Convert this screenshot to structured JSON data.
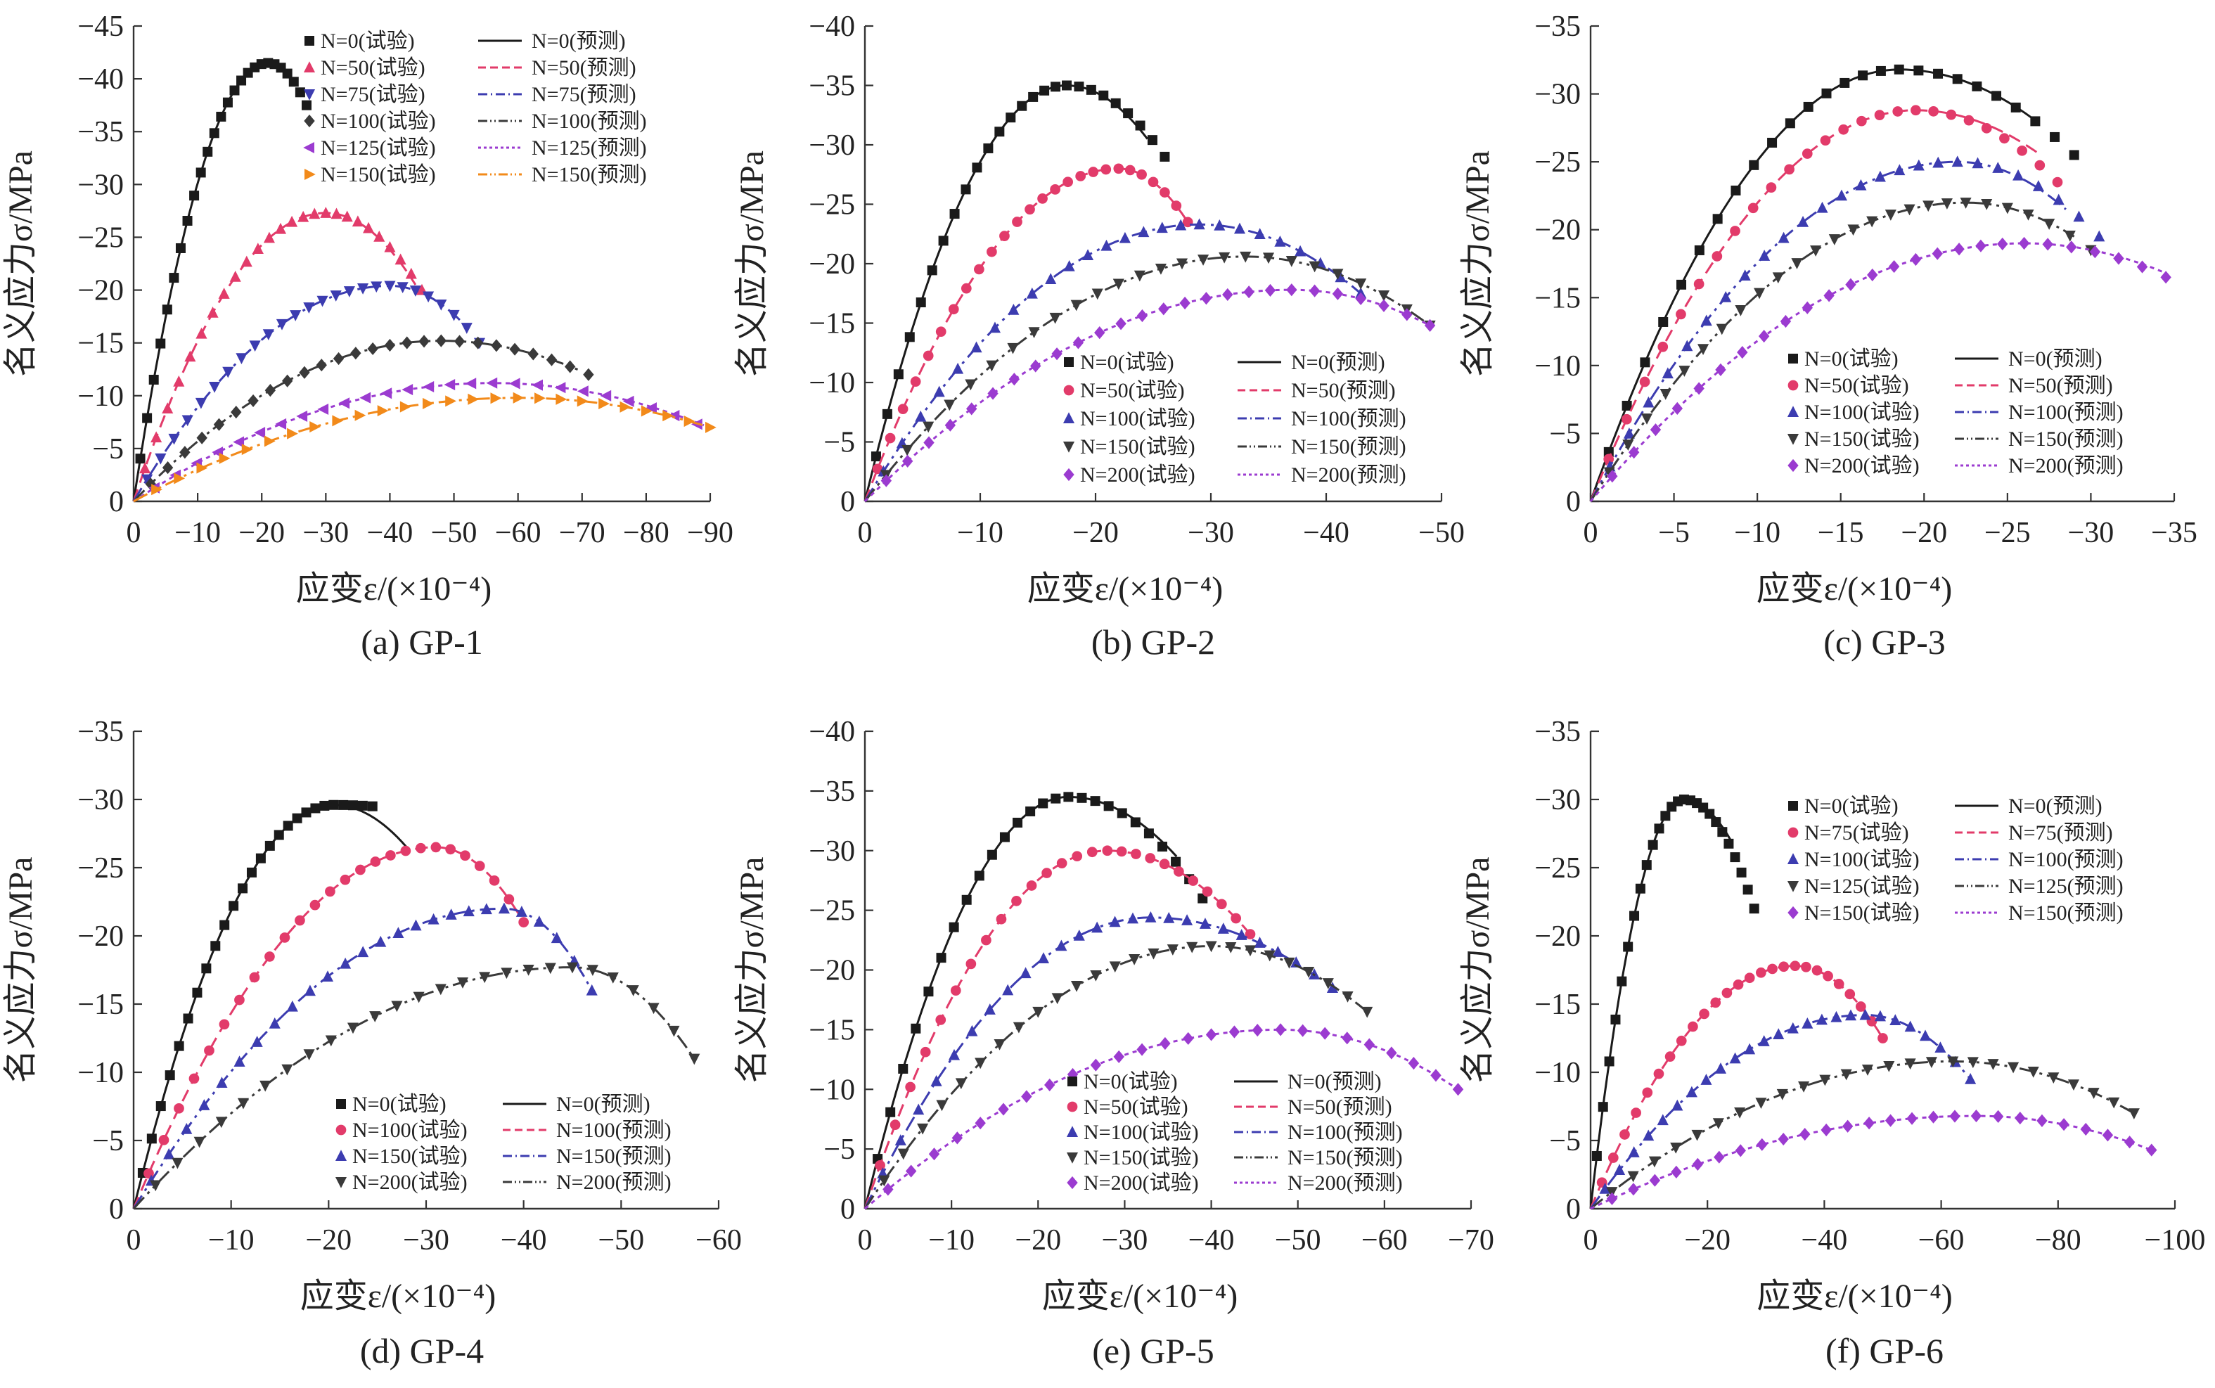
{
  "chart_data": [
    {
      "type": "scatter",
      "caption": "(a) GP-1",
      "xlabel": "应变ε/(×10⁻⁴)",
      "ylabel": "名义应力σ/MPa",
      "xlim": [
        0,
        -90
      ],
      "ylim": [
        0,
        -45
      ],
      "xticks": [
        0,
        -10,
        -20,
        -30,
        -40,
        -50,
        -60,
        -70,
        -80,
        -90
      ],
      "yticks": [
        0,
        -5,
        -10,
        -15,
        -20,
        -25,
        -30,
        -35,
        -40,
        -45
      ],
      "legend_position": "top-center",
      "legend_columns": 2,
      "legend": [
        "N=0(试验)",
        "N=0(预测)",
        "N=50(试验)",
        "N=50(预测)",
        "N=75(试验)",
        "N=75(预测)",
        "N=100(试验)",
        "N=100(预测)",
        "N=125(试验)",
        "N=125(预测)",
        "N=150(试验)",
        "N=150(预测)"
      ],
      "series": [
        {
          "N": 0,
          "color": "#1a1a1a",
          "marker": "square",
          "line": "solid",
          "peak": [
            -21,
            -41.5
          ],
          "end_test": [
            -27,
            -37.5
          ],
          "end_pred": [
            -21,
            -41.5
          ]
        },
        {
          "N": 50,
          "color": "#e23b6a",
          "marker": "tri-up",
          "line": "dash",
          "peak": [
            -30,
            -27.3
          ],
          "end_test": [
            -45,
            -20.0
          ],
          "end_pred": [
            -44,
            -20.5
          ]
        },
        {
          "N": 75,
          "color": "#3c3cb0",
          "marker": "tri-down",
          "line": "dashdot",
          "peak": [
            -40,
            -20.4
          ],
          "end_test": [
            -54,
            -15.0
          ],
          "end_pred": [
            -52,
            -16.5
          ]
        },
        {
          "N": 100,
          "color": "#3a3a3a",
          "marker": "diamond",
          "line": "dashdotdot",
          "peak": [
            -48,
            -15.2
          ],
          "end_test": [
            -71,
            -12.0
          ],
          "end_pred": [
            -70,
            -12.3
          ]
        },
        {
          "N": 125,
          "color": "#9b3bd0",
          "marker": "tri-left",
          "line": "dot",
          "peak": [
            -56,
            -11.2
          ],
          "end_test": [
            -88,
            -7.3
          ],
          "end_pred": [
            -89,
            -7.2
          ]
        },
        {
          "N": 150,
          "color": "#f28a1a",
          "marker": "tri-right",
          "line": "dashdotdot",
          "peak": [
            -60,
            -9.8
          ],
          "end_test": [
            -90,
            -7.0
          ],
          "end_pred": [
            -90,
            -7.0
          ]
        }
      ]
    },
    {
      "type": "scatter",
      "caption": "(b) GP-2",
      "xlabel": "应变ε/(×10⁻⁴)",
      "ylabel": "名义应力σ/MPa",
      "xlim": [
        0,
        -50
      ],
      "ylim": [
        0,
        -40
      ],
      "xticks": [
        0,
        -10,
        -20,
        -30,
        -40,
        -50
      ],
      "yticks": [
        0,
        -5,
        -10,
        -15,
        -20,
        -25,
        -30,
        -35,
        -40
      ],
      "legend_position": "center-right",
      "legend_columns": 2,
      "legend": [
        "N=0(试验)",
        "N=0(预测)",
        "N=50(试验)",
        "N=50(预测)",
        "N=100(试验)",
        "N=100(预测)",
        "N=150(试验)",
        "N=150(预测)",
        "N=200(试验)",
        "N=200(预测)"
      ],
      "series": [
        {
          "N": 0,
          "color": "#1a1a1a",
          "marker": "square",
          "line": "solid",
          "peak": [
            -17.5,
            -35.0
          ],
          "end_test": [
            -26,
            -29.0
          ],
          "end_pred": [
            -24.5,
            -30.5
          ]
        },
        {
          "N": 50,
          "color": "#e23b6a",
          "marker": "circle",
          "line": "dash",
          "peak": [
            -22,
            -28.0
          ],
          "end_test": [
            -28,
            -23.5
          ],
          "end_pred": [
            -28,
            -23.5
          ]
        },
        {
          "N": 100,
          "color": "#3c3cb0",
          "marker": "tri-up",
          "line": "dashdot",
          "peak": [
            -29,
            -23.3
          ],
          "end_test": [
            -43,
            -17.5
          ],
          "end_pred": [
            -43,
            -17.5
          ]
        },
        {
          "N": 150,
          "color": "#3a3a3a",
          "marker": "tri-down",
          "line": "dashdotdot",
          "peak": [
            -33,
            -20.6
          ],
          "end_test": [
            -49,
            -14.8
          ],
          "end_pred": [
            -49,
            -14.8
          ]
        },
        {
          "N": 200,
          "color": "#9b3bd0",
          "marker": "diamond",
          "line": "dot",
          "peak": [
            -37,
            -17.8
          ],
          "end_test": [
            -49,
            -14.8
          ],
          "end_pred": [
            -49,
            -14.8
          ]
        }
      ]
    },
    {
      "type": "scatter",
      "caption": "(c) GP-3",
      "xlabel": "应变ε/(×10⁻⁴)",
      "ylabel": "名义应力σ/MPa",
      "xlim": [
        0,
        -35
      ],
      "ylim": [
        0,
        -35
      ],
      "xticks": [
        0,
        -5,
        -10,
        -15,
        -20,
        -25,
        -30,
        -35
      ],
      "yticks": [
        0,
        -5,
        -10,
        -15,
        -20,
        -25,
        -30,
        -35
      ],
      "legend_position": "bottom-center",
      "legend_columns": 2,
      "legend": [
        "N=0(试验)",
        "N=0(预测)",
        "N=50(试验)",
        "N=50(预测)",
        "N=100(试验)",
        "N=100(预测)",
        "N=150(试验)",
        "N=150(预测)",
        "N=200(试验)",
        "N=200(预测)"
      ],
      "series": [
        {
          "N": 0,
          "color": "#1a1a1a",
          "marker": "square",
          "line": "solid",
          "peak": [
            -18.5,
            -31.8
          ],
          "end_test": [
            -29,
            -25.5
          ],
          "end_pred": [
            -26.5,
            -28.2
          ]
        },
        {
          "N": 50,
          "color": "#e23b6a",
          "marker": "circle",
          "line": "dash",
          "peak": [
            -19.5,
            -28.8
          ],
          "end_test": [
            -28,
            -23.5
          ],
          "end_pred": [
            -27,
            -25.5
          ]
        },
        {
          "N": 100,
          "color": "#3c3cb0",
          "marker": "tri-up",
          "line": "dashdot",
          "peak": [
            -22,
            -25.0
          ],
          "end_test": [
            -30.5,
            -19.5
          ],
          "end_pred": [
            -28.5,
            -21.5
          ]
        },
        {
          "N": 150,
          "color": "#3a3a3a",
          "marker": "tri-down",
          "line": "dashdotdot",
          "peak": [
            -22.5,
            -22.0
          ],
          "end_test": [
            -30,
            -18.5
          ],
          "end_pred": [
            -29,
            -19.5
          ]
        },
        {
          "N": 200,
          "color": "#9b3bd0",
          "marker": "diamond",
          "line": "dot",
          "peak": [
            -26,
            -19.0
          ],
          "end_test": [
            -34.5,
            -16.5
          ],
          "end_pred": [
            -34.5,
            -16.8
          ]
        }
      ]
    },
    {
      "type": "scatter",
      "caption": "(d) GP-4",
      "xlabel": "应变ε/(×10⁻⁴)",
      "ylabel": "名义应力σ/MPa",
      "xlim": [
        0,
        -60
      ],
      "ylim": [
        0,
        -35
      ],
      "xticks": [
        0,
        -10,
        -20,
        -30,
        -40,
        -50,
        -60
      ],
      "yticks": [
        0,
        -5,
        -10,
        -15,
        -20,
        -25,
        -30,
        -35
      ],
      "legend_position": "bottom-center",
      "legend_columns": 2,
      "legend": [
        "N=0(试验)",
        "N=0(预测)",
        "N=100(试验)",
        "N=100(预测)",
        "N=150(试验)",
        "N=150(预测)",
        "N=200(试验)",
        "N=200(预测)"
      ],
      "series": [
        {
          "N": 0,
          "color": "#1a1a1a",
          "marker": "square",
          "line": "solid",
          "peak": [
            -20.5,
            -29.6
          ],
          "end_test": [
            -24.5,
            -29.5
          ],
          "end_pred": [
            -28,
            -26.5
          ]
        },
        {
          "N": 100,
          "color": "#e23b6a",
          "marker": "circle",
          "line": "dash",
          "peak": [
            -31,
            -26.5
          ],
          "end_test": [
            -40,
            -21.0
          ],
          "end_pred": [
            -40,
            -21.0
          ]
        },
        {
          "N": 150,
          "color": "#3c3cb0",
          "marker": "tri-up",
          "line": "dashdot",
          "peak": [
            -38,
            -22.0
          ],
          "end_test": [
            -47,
            -16.0
          ],
          "end_pred": [
            -47,
            -16.0
          ]
        },
        {
          "N": 200,
          "color": "#3a3a3a",
          "marker": "tri-down",
          "line": "dashdotdot",
          "peak": [
            -45,
            -17.7
          ],
          "end_test": [
            -57.5,
            -11.0
          ],
          "end_pred": [
            -57.5,
            -11.0
          ]
        }
      ]
    },
    {
      "type": "scatter",
      "caption": "(e) GP-5",
      "xlabel": "应变ε/(×10⁻⁴)",
      "ylabel": "名义应力σ/MPa",
      "xlim": [
        0,
        -70
      ],
      "ylim": [
        0,
        -40
      ],
      "xticks": [
        0,
        -10,
        -20,
        -30,
        -40,
        -50,
        -60,
        -70
      ],
      "yticks": [
        0,
        -5,
        -10,
        -15,
        -20,
        -25,
        -30,
        -35,
        -40
      ],
      "legend_position": "bottom-center",
      "legend_columns": 2,
      "legend": [
        "N=0(试验)",
        "N=0(预测)",
        "N=50(试验)",
        "N=50(预测)",
        "N=100(试验)",
        "N=100(预测)",
        "N=150(试验)",
        "N=150(预测)",
        "N=200(试验)",
        "N=200(预测)"
      ],
      "series": [
        {
          "N": 0,
          "color": "#1a1a1a",
          "marker": "square",
          "line": "solid",
          "peak": [
            -23.5,
            -34.5
          ],
          "end_test": [
            -39,
            -26.0
          ],
          "end_pred": [
            -36,
            -29.5
          ]
        },
        {
          "N": 50,
          "color": "#e23b6a",
          "marker": "circle",
          "line": "dash",
          "peak": [
            -28,
            -30.0
          ],
          "end_test": [
            -44.5,
            -23.0
          ],
          "end_pred": [
            -44.5,
            -23.0
          ]
        },
        {
          "N": 100,
          "color": "#3c3cb0",
          "marker": "tri-up",
          "line": "dashdot",
          "peak": [
            -33,
            -24.4
          ],
          "end_test": [
            -54,
            -18.5
          ],
          "end_pred": [
            -52,
            -19.5
          ]
        },
        {
          "N": 150,
          "color": "#3a3a3a",
          "marker": "tri-down",
          "line": "dashdotdot",
          "peak": [
            -40,
            -22.0
          ],
          "end_test": [
            -58,
            -16.5
          ],
          "end_pred": [
            -58,
            -16.5
          ]
        },
        {
          "N": 200,
          "color": "#9b3bd0",
          "marker": "diamond",
          "line": "dot",
          "peak": [
            -48,
            -15.0
          ],
          "end_test": [
            -68.5,
            -10.0
          ],
          "end_pred": [
            -68.5,
            -10.0
          ]
        }
      ]
    },
    {
      "type": "scatter",
      "caption": "(f) GP-6",
      "xlabel": "应变ε/(×10⁻⁴)",
      "ylabel": "名义应力σ/MPa",
      "xlim": [
        0,
        -100
      ],
      "ylim": [
        0,
        -35
      ],
      "xticks": [
        0,
        -20,
        -40,
        -60,
        -80,
        -100
      ],
      "yticks": [
        0,
        -5,
        -10,
        -15,
        -20,
        -25,
        -30,
        -35
      ],
      "legend_position": "top-center",
      "legend_columns": 2,
      "legend": [
        "N=0(试验)",
        "N=0(预测)",
        "N=75(试验)",
        "N=75(预测)",
        "N=100(试验)",
        "N=100(预测)",
        "N=125(试验)",
        "N=125(预测)",
        "N=150(试验)",
        "N=150(预测)"
      ],
      "series": [
        {
          "N": 0,
          "color": "#1a1a1a",
          "marker": "square",
          "line": "solid",
          "peak": [
            -16,
            -30.0
          ],
          "end_test": [
            -28,
            -22.0
          ],
          "end_pred": [
            -24,
            -27.0
          ]
        },
        {
          "N": 75,
          "color": "#e23b6a",
          "marker": "circle",
          "line": "dash",
          "peak": [
            -35,
            -17.8
          ],
          "end_test": [
            -50,
            -12.5
          ],
          "end_pred": [
            -50,
            -12.5
          ]
        },
        {
          "N": 100,
          "color": "#3c3cb0",
          "marker": "tri-up",
          "line": "dashdot",
          "peak": [
            -47,
            -14.2
          ],
          "end_test": [
            -65,
            -9.5
          ],
          "end_pred": [
            -65,
            -9.5
          ]
        },
        {
          "N": 125,
          "color": "#3a3a3a",
          "marker": "tri-down",
          "line": "dashdotdot",
          "peak": [
            -62,
            -10.8
          ],
          "end_test": [
            -93,
            -7.0
          ],
          "end_pred": [
            -93,
            -7.0
          ]
        },
        {
          "N": 150,
          "color": "#9b3bd0",
          "marker": "diamond",
          "line": "dot",
          "peak": [
            -66,
            -6.8
          ],
          "end_test": [
            -96,
            -4.3
          ],
          "end_pred": [
            -96,
            -4.3
          ]
        }
      ]
    }
  ]
}
